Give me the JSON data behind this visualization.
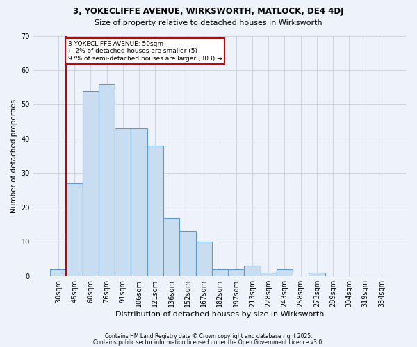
{
  "title_line1": "3, YOKECLIFFE AVENUE, WIRKSWORTH, MATLOCK, DE4 4DJ",
  "title_line2": "Size of property relative to detached houses in Wirksworth",
  "xlabel": "Distribution of detached houses by size in Wirksworth",
  "ylabel": "Number of detached properties",
  "categories": [
    "30sqm",
    "45sqm",
    "60sqm",
    "76sqm",
    "91sqm",
    "106sqm",
    "121sqm",
    "136sqm",
    "152sqm",
    "167sqm",
    "182sqm",
    "197sqm",
    "213sqm",
    "228sqm",
    "243sqm",
    "258sqm",
    "273sqm",
    "289sqm",
    "304sqm",
    "319sqm",
    "334sqm"
  ],
  "values": [
    2,
    27,
    54,
    56,
    43,
    43,
    38,
    17,
    13,
    10,
    2,
    2,
    3,
    1,
    2,
    0,
    1,
    0,
    0,
    0,
    0
  ],
  "bar_color": "#c9ddf0",
  "bar_edge_color": "#5b9bd5",
  "grid_color": "#c8d0dc",
  "background_color": "#eef2fa",
  "vline_color": "#cc0000",
  "annotation_text": "3 YOKECLIFFE AVENUE: 50sqm\n← 2% of detached houses are smaller (5)\n97% of semi-detached houses are larger (303) →",
  "annotation_box_facecolor": "#ffffff",
  "annotation_box_edgecolor": "#cc0000",
  "ylim": [
    0,
    70
  ],
  "footer_line1": "Contains HM Land Registry data © Crown copyright and database right 2025.",
  "footer_line2": "Contains public sector information licensed under the Open Government Licence v3.0."
}
